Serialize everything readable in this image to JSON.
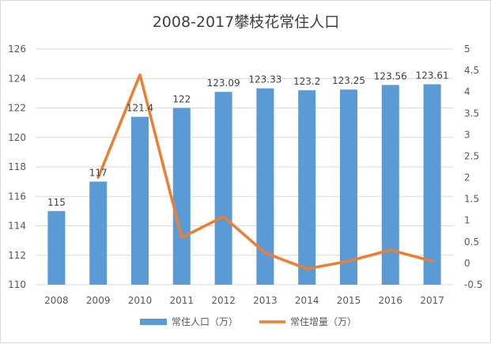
{
  "chart_data": {
    "type": "bar",
    "title": "2008-2017攀枝花常住人口",
    "categories": [
      "2008",
      "2009",
      "2010",
      "2011",
      "2012",
      "2013",
      "2014",
      "2015",
      "2016",
      "2017"
    ],
    "series": [
      {
        "name": "常住人口（万）",
        "type": "bar",
        "axis": "left",
        "color": "#5b9bd5",
        "values": [
          115,
          117,
          121.4,
          122,
          123.09,
          123.33,
          123.2,
          123.25,
          123.56,
          123.61
        ],
        "labels": [
          "115",
          "117",
          "121.4",
          "122",
          "123.09",
          "123.33",
          "123.2",
          "123.25",
          "123.56",
          "123.61"
        ]
      },
      {
        "name": "常住增量（万）",
        "type": "line",
        "axis": "right",
        "color": "#ed7d31",
        "values": [
          null,
          2,
          4.4,
          0.6,
          1.09,
          0.24,
          -0.13,
          0.05,
          0.31,
          0.05
        ]
      }
    ],
    "y_left": {
      "min": 110,
      "max": 126,
      "step": 2,
      "ticks": [
        "110",
        "112",
        "114",
        "116",
        "118",
        "120",
        "122",
        "124",
        "126"
      ]
    },
    "y_right": {
      "min": -0.5,
      "max": 5,
      "step": 0.5,
      "ticks": [
        "-0.5",
        "0",
        "0.5",
        "1",
        "1.5",
        "2",
        "2.5",
        "3",
        "3.5",
        "4",
        "4.5",
        "5"
      ]
    },
    "grid": true,
    "legend": "bottom"
  }
}
